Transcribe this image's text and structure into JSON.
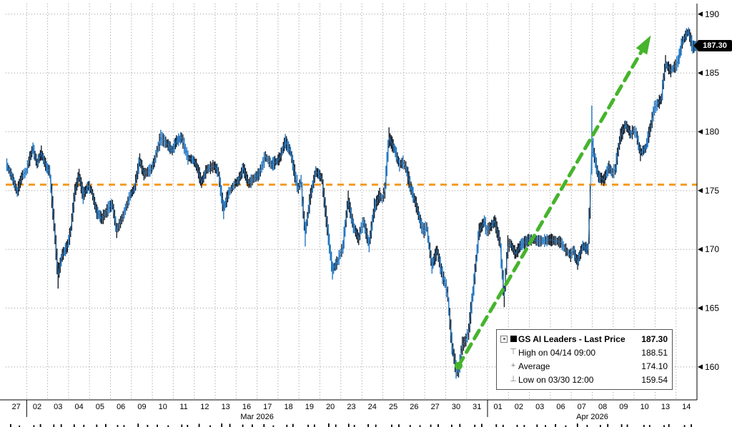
{
  "page": {
    "background": "#ffffff"
  },
  "chart_data": {
    "type": "line",
    "render_style": "intraday-price-bars",
    "title": "GS AI Leaders - Last Price",
    "last_price": 187.3,
    "last_price_label": "187.30",
    "y_axis": {
      "range": [
        157.2,
        190.9
      ],
      "ticks": [
        190,
        185,
        180,
        175,
        170,
        165,
        160
      ],
      "grid": true
    },
    "x_axis": {
      "total_days": 33,
      "ticks": [
        {
          "label": "27",
          "day": 0
        },
        {
          "label": "02",
          "day": 1
        },
        {
          "label": "03",
          "day": 2
        },
        {
          "label": "04",
          "day": 3
        },
        {
          "label": "05",
          "day": 4
        },
        {
          "label": "06",
          "day": 5
        },
        {
          "label": "09",
          "day": 6
        },
        {
          "label": "10",
          "day": 7
        },
        {
          "label": "11",
          "day": 8
        },
        {
          "label": "12",
          "day": 9
        },
        {
          "label": "13",
          "day": 10
        },
        {
          "label": "16",
          "day": 11
        },
        {
          "label": "17",
          "day": 12
        },
        {
          "label": "18",
          "day": 13
        },
        {
          "label": "19",
          "day": 14
        },
        {
          "label": "20",
          "day": 15
        },
        {
          "label": "23",
          "day": 16
        },
        {
          "label": "24",
          "day": 17
        },
        {
          "label": "25",
          "day": 18
        },
        {
          "label": "26",
          "day": 19
        },
        {
          "label": "27",
          "day": 20
        },
        {
          "label": "30",
          "day": 21
        },
        {
          "label": "31",
          "day": 22
        },
        {
          "label": "01",
          "day": 23
        },
        {
          "label": "02",
          "day": 24
        },
        {
          "label": "03",
          "day": 25
        },
        {
          "label": "06",
          "day": 26
        },
        {
          "label": "07",
          "day": 27
        },
        {
          "label": "08",
          "day": 28
        },
        {
          "label": "09",
          "day": 29
        },
        {
          "label": "10",
          "day": 30
        },
        {
          "label": "13",
          "day": 31
        },
        {
          "label": "14",
          "day": 32
        }
      ],
      "boundaries": [
        1,
        23
      ],
      "month_labels": [
        {
          "label": "Mar 2026",
          "from": 1,
          "to": 23
        },
        {
          "label": "Apr 2026",
          "from": 23,
          "to": 33
        }
      ]
    },
    "legend": {
      "rows": [
        {
          "icon": "series-swatch",
          "label": "GS AI Leaders - Last Price",
          "value": "187.30"
        },
        {
          "icon": "high-marker",
          "glyph": "⊤",
          "label": "High on 04/14 09:00",
          "value": "188.51"
        },
        {
          "icon": "average-marker",
          "glyph": "+",
          "label": "Average",
          "value": "174.10"
        },
        {
          "icon": "low-marker",
          "glyph": "⊥",
          "label": "Low on 03/30 12:00",
          "value": "159.54"
        }
      ]
    },
    "high_point": {
      "time": "04/14 09:00",
      "price": 188.51
    },
    "low_point": {
      "time": "03/30 12:00",
      "price": 159.54
    },
    "average": 174.1,
    "orange_dashed_line": {
      "price": 175.5,
      "color": "#f59b22"
    },
    "green_arrow": {
      "from": {
        "t": 21.62,
        "price": 160.1
      },
      "to": {
        "t": 30.8,
        "price": 188.2
      },
      "color": "#46b42c"
    },
    "series": [
      {
        "name": "GS AI Leaders",
        "color_bar": "#0b1623",
        "color_line": "#2277c3",
        "points": [
          [
            0.05,
            177.2
          ],
          [
            0.3,
            176.2
          ],
          [
            0.55,
            174.9
          ],
          [
            0.8,
            176.3
          ],
          [
            0.98,
            176.6
          ],
          [
            1.1,
            177.4
          ],
          [
            1.3,
            178.6
          ],
          [
            1.5,
            177.3
          ],
          [
            1.7,
            178.2
          ],
          [
            1.95,
            177.0
          ],
          [
            2.1,
            176.6
          ],
          [
            2.3,
            172.5
          ],
          [
            2.5,
            167.8
          ],
          [
            2.7,
            169.5
          ],
          [
            2.95,
            170.3
          ],
          [
            3.1,
            171.5
          ],
          [
            3.3,
            174.8
          ],
          [
            3.5,
            176.3
          ],
          [
            3.7,
            174.6
          ],
          [
            3.95,
            175.4
          ],
          [
            4.1,
            175.0
          ],
          [
            4.35,
            173.2
          ],
          [
            4.6,
            172.6
          ],
          [
            4.95,
            173.6
          ],
          [
            5.1,
            173.8
          ],
          [
            5.3,
            171.6
          ],
          [
            5.6,
            172.8
          ],
          [
            5.95,
            174.6
          ],
          [
            6.15,
            175.2
          ],
          [
            6.4,
            177.6
          ],
          [
            6.6,
            176.4
          ],
          [
            6.95,
            176.8
          ],
          [
            7.1,
            177.5
          ],
          [
            7.4,
            179.5
          ],
          [
            7.7,
            179.0
          ],
          [
            7.95,
            178.4
          ],
          [
            8.15,
            179.2
          ],
          [
            8.4,
            179.5
          ],
          [
            8.7,
            177.8
          ],
          [
            8.95,
            177.6
          ],
          [
            9.1,
            177.2
          ],
          [
            9.35,
            175.7
          ],
          [
            9.6,
            176.8
          ],
          [
            9.95,
            177.1
          ],
          [
            10.15,
            176.6
          ],
          [
            10.4,
            173.4
          ],
          [
            10.65,
            174.8
          ],
          [
            10.95,
            175.6
          ],
          [
            11.1,
            175.8
          ],
          [
            11.35,
            176.9
          ],
          [
            11.6,
            175.6
          ],
          [
            11.95,
            176.2
          ],
          [
            12.1,
            176.4
          ],
          [
            12.4,
            177.9
          ],
          [
            12.7,
            177.2
          ],
          [
            12.95,
            177.5
          ],
          [
            13.1,
            177.8
          ],
          [
            13.35,
            179.2
          ],
          [
            13.6,
            178.3
          ],
          [
            13.85,
            176.0
          ],
          [
            13.97,
            175.2
          ],
          [
            14.1,
            175.8
          ],
          [
            14.3,
            171.3
          ],
          [
            14.55,
            174.5
          ],
          [
            14.8,
            176.6
          ],
          [
            14.95,
            176.4
          ],
          [
            15.1,
            176.0
          ],
          [
            15.35,
            172.0
          ],
          [
            15.6,
            168.2
          ],
          [
            15.85,
            169.0
          ],
          [
            15.97,
            169.6
          ],
          [
            16.1,
            170.2
          ],
          [
            16.35,
            174.2
          ],
          [
            16.6,
            172.0
          ],
          [
            16.85,
            170.9
          ],
          [
            16.97,
            171.8
          ],
          [
            17.1,
            172.3
          ],
          [
            17.35,
            170.4
          ],
          [
            17.6,
            173.5
          ],
          [
            17.85,
            174.6
          ],
          [
            17.97,
            174.3
          ],
          [
            18.1,
            175.0
          ],
          [
            18.3,
            179.5
          ],
          [
            18.55,
            178.6
          ],
          [
            18.8,
            177.2
          ],
          [
            18.97,
            177.4
          ],
          [
            19.1,
            177.0
          ],
          [
            19.35,
            175.2
          ],
          [
            19.6,
            173.8
          ],
          [
            19.85,
            172.0
          ],
          [
            19.97,
            171.6
          ],
          [
            20.1,
            171.9
          ],
          [
            20.35,
            168.6
          ],
          [
            20.6,
            169.9
          ],
          [
            20.85,
            167.8
          ],
          [
            20.97,
            167.2
          ],
          [
            21.1,
            166.2
          ],
          [
            21.3,
            162.0
          ],
          [
            21.5,
            159.8
          ],
          [
            21.62,
            159.54
          ],
          [
            21.8,
            161.8
          ],
          [
            21.97,
            162.3
          ],
          [
            22.1,
            163.0
          ],
          [
            22.35,
            167.0
          ],
          [
            22.6,
            171.5
          ],
          [
            22.85,
            172.4
          ],
          [
            22.97,
            171.6
          ],
          [
            23.1,
            171.8
          ],
          [
            23.35,
            172.4
          ],
          [
            23.6,
            170.6
          ],
          [
            23.8,
            166.0
          ],
          [
            23.97,
            170.2
          ],
          [
            24.1,
            170.5
          ],
          [
            24.35,
            169.6
          ],
          [
            24.6,
            170.4
          ],
          [
            24.97,
            170.8
          ],
          [
            25.15,
            170.8
          ],
          [
            25.5,
            170.7
          ],
          [
            25.95,
            170.8
          ],
          [
            26.1,
            170.8
          ],
          [
            26.5,
            170.6
          ],
          [
            26.8,
            169.8
          ],
          [
            26.97,
            169.5
          ],
          [
            27.1,
            169.9
          ],
          [
            27.3,
            168.9
          ],
          [
            27.55,
            170.3
          ],
          [
            27.8,
            170.0
          ],
          [
            27.9,
            174.0
          ],
          [
            27.98,
            179.3
          ],
          [
            28.1,
            178.0
          ],
          [
            28.3,
            176.2
          ],
          [
            28.55,
            175.9
          ],
          [
            28.8,
            177.0
          ],
          [
            28.97,
            176.5
          ],
          [
            29.1,
            176.8
          ],
          [
            29.35,
            179.6
          ],
          [
            29.6,
            180.6
          ],
          [
            29.85,
            179.8
          ],
          [
            29.97,
            180.1
          ],
          [
            30.1,
            179.9
          ],
          [
            30.3,
            178.2
          ],
          [
            30.55,
            178.6
          ],
          [
            30.8,
            180.5
          ],
          [
            30.97,
            182.0
          ],
          [
            31.1,
            182.3
          ],
          [
            31.3,
            182.8
          ],
          [
            31.5,
            185.8
          ],
          [
            31.75,
            185.2
          ],
          [
            31.97,
            185.6
          ],
          [
            32.1,
            186.0
          ],
          [
            32.3,
            187.6
          ],
          [
            32.5,
            188.3
          ],
          [
            32.6,
            188.51
          ],
          [
            32.8,
            187.2
          ],
          [
            32.95,
            187.3
          ]
        ]
      }
    ]
  }
}
